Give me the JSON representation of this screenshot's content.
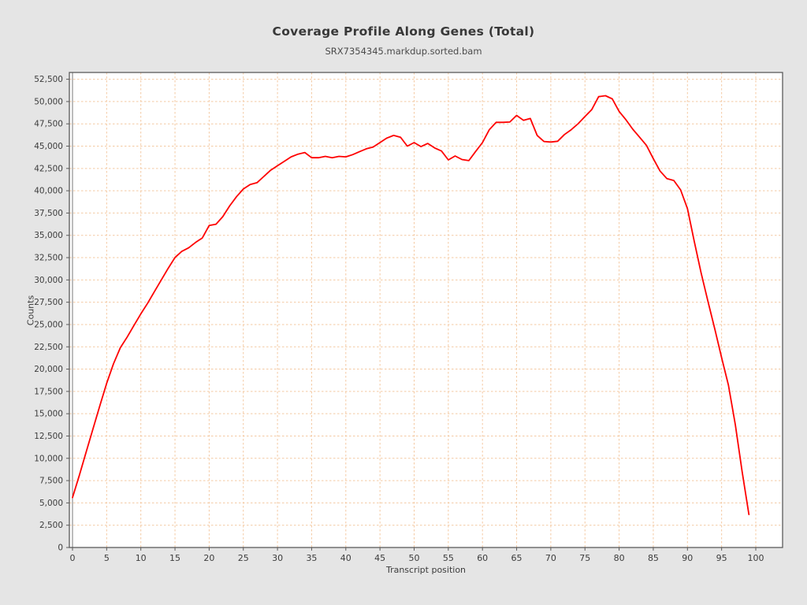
{
  "chart_data": {
    "type": "line",
    "title": "Coverage Profile Along Genes (Total)",
    "subtitle": "SRX7354345.markdup.sorted.bam",
    "xlabel": "Transcript position",
    "ylabel": "Counts",
    "xlim": [
      0,
      100
    ],
    "ylim": [
      0,
      52500
    ],
    "grid": true,
    "legend": "none",
    "x_ticks": [
      0,
      5,
      10,
      15,
      20,
      25,
      30,
      35,
      40,
      45,
      50,
      55,
      60,
      65,
      70,
      75,
      80,
      85,
      90,
      95,
      100
    ],
    "y_ticks": [
      0,
      2500,
      5000,
      7500,
      10000,
      12500,
      15000,
      17500,
      20000,
      22500,
      25000,
      27500,
      30000,
      32500,
      35000,
      37500,
      40000,
      42500,
      45000,
      47500,
      50000,
      52500
    ],
    "colors": {
      "line": "#fe0000",
      "grid": "#f4c9a2",
      "frame": "#5b5b5b",
      "axis_zero": "#7a7a7a",
      "text": "#3c3c3c",
      "plot_bg": "#ffffff",
      "page_bg": "#e5e5e5"
    },
    "series": [
      {
        "name": "SRX7354345.markdup.sorted.bam",
        "x": [
          0,
          1,
          2,
          3,
          4,
          5,
          6,
          7,
          8,
          9,
          10,
          11,
          12,
          13,
          14,
          15,
          16,
          17,
          18,
          19,
          20,
          21,
          22,
          23,
          24,
          25,
          26,
          27,
          28,
          29,
          30,
          31,
          32,
          33,
          34,
          35,
          36,
          37,
          38,
          39,
          40,
          41,
          42,
          43,
          44,
          45,
          46,
          47,
          48,
          49,
          50,
          51,
          52,
          53,
          54,
          55,
          56,
          57,
          58,
          59,
          60,
          61,
          62,
          63,
          64,
          65,
          66,
          67,
          68,
          69,
          70,
          71,
          72,
          73,
          74,
          75,
          76,
          77,
          78,
          79,
          80,
          81,
          82,
          83,
          84,
          85,
          86,
          87,
          88,
          89,
          90,
          91,
          92,
          93,
          94,
          95,
          96,
          97,
          98,
          99
        ],
        "y": [
          5600,
          8100,
          10700,
          13300,
          15900,
          18400,
          20600,
          22400,
          23600,
          24900,
          26200,
          27400,
          28700,
          30000,
          31300,
          32520,
          33200,
          33600,
          34200,
          34700,
          36100,
          36250,
          37100,
          38300,
          39330,
          40200,
          40700,
          40900,
          41600,
          42300,
          42800,
          43300,
          43800,
          44100,
          44290,
          43700,
          43700,
          43850,
          43700,
          43850,
          43800,
          44050,
          44370,
          44700,
          44900,
          45400,
          45900,
          46200,
          46000,
          45000,
          45400,
          44950,
          45300,
          44800,
          44450,
          43460,
          43900,
          43500,
          43380,
          44400,
          45400,
          46850,
          47670,
          47670,
          47700,
          48450,
          47900,
          48100,
          46200,
          45520,
          45460,
          45550,
          46300,
          46850,
          47520,
          48320,
          49100,
          50550,
          50650,
          50300,
          48900,
          47950,
          46900,
          46000,
          45080,
          43600,
          42200,
          41350,
          41150,
          40100,
          38000,
          34300,
          30800,
          27600,
          24500,
          21300,
          18200,
          13800,
          8500,
          3700
        ]
      }
    ]
  }
}
